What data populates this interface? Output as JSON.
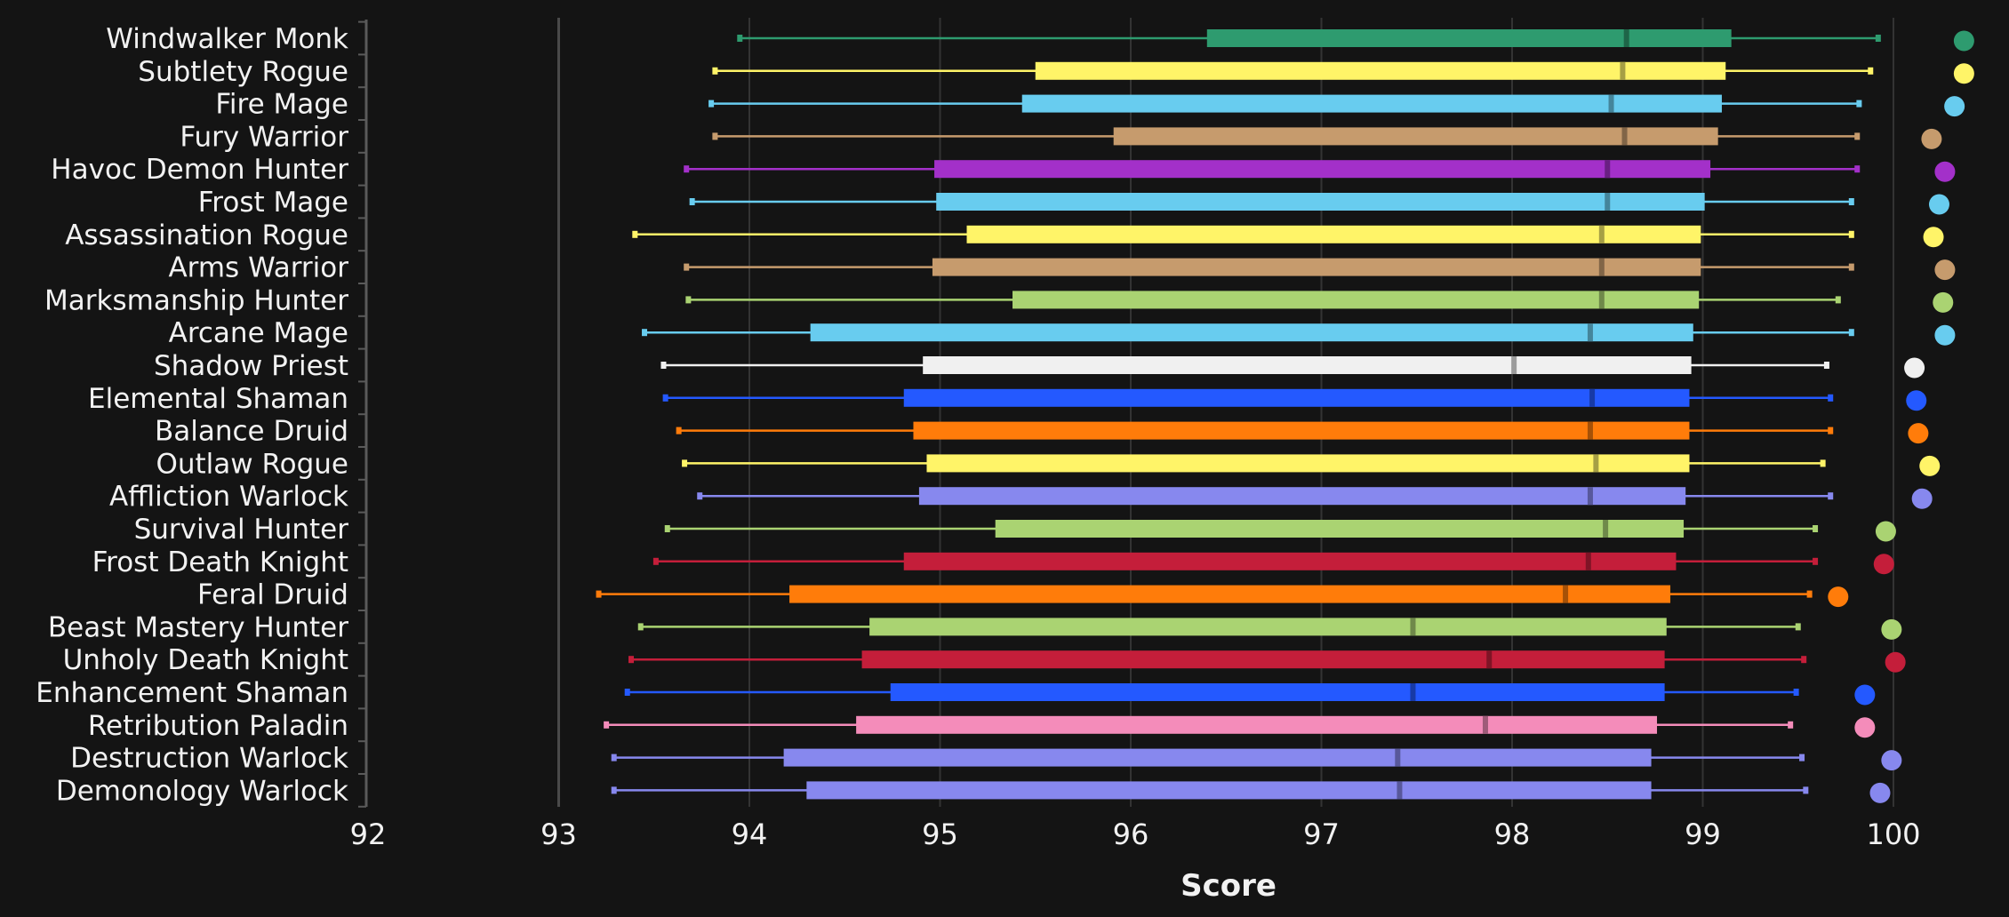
{
  "chart_data": {
    "type": "boxplot",
    "xlabel": "Score",
    "ylabel": "",
    "xlim": [
      92,
      100
    ],
    "xticks": [
      "92",
      "93",
      "94",
      "95",
      "96",
      "97",
      "98",
      "99",
      "100"
    ],
    "grid": true,
    "legend": "none",
    "series": [
      {
        "name": "Windwalker Monk",
        "color": "#2e9b6f",
        "min": 93.95,
        "q1": 96.4,
        "median": 98.6,
        "q3": 99.15,
        "max": 99.92,
        "max_point": 100.37
      },
      {
        "name": "Subtlety Rogue",
        "color": "#fff468",
        "min": 93.82,
        "q1": 95.5,
        "median": 98.58,
        "q3": 99.12,
        "max": 99.88,
        "max_point": 100.37
      },
      {
        "name": "Fire Mage",
        "color": "#68ccef",
        "min": 93.8,
        "q1": 95.43,
        "median": 98.52,
        "q3": 99.1,
        "max": 99.82,
        "max_point": 100.32
      },
      {
        "name": "Fury Warrior",
        "color": "#c69b6d",
        "min": 93.82,
        "q1": 95.91,
        "median": 98.59,
        "q3": 99.08,
        "max": 99.81,
        "max_point": 100.2
      },
      {
        "name": "Havoc Demon Hunter",
        "color": "#a330c9",
        "min": 93.67,
        "q1": 94.97,
        "median": 98.5,
        "q3": 99.04,
        "max": 99.81,
        "max_point": 100.27
      },
      {
        "name": "Frost Mage",
        "color": "#68ccef",
        "min": 93.7,
        "q1": 94.98,
        "median": 98.5,
        "q3": 99.01,
        "max": 99.78,
        "max_point": 100.24
      },
      {
        "name": "Assassination Rogue",
        "color": "#fff468",
        "min": 93.4,
        "q1": 95.14,
        "median": 98.47,
        "q3": 98.99,
        "max": 99.78,
        "max_point": 100.21
      },
      {
        "name": "Arms Warrior",
        "color": "#c69b6d",
        "min": 93.67,
        "q1": 94.96,
        "median": 98.47,
        "q3": 98.99,
        "max": 99.78,
        "max_point": 100.27
      },
      {
        "name": "Marksmanship Hunter",
        "color": "#aad372",
        "min": 93.68,
        "q1": 95.38,
        "median": 98.47,
        "q3": 98.98,
        "max": 99.71,
        "max_point": 100.26
      },
      {
        "name": "Arcane Mage",
        "color": "#68ccef",
        "min": 93.45,
        "q1": 94.32,
        "median": 98.41,
        "q3": 98.95,
        "max": 99.78,
        "max_point": 100.27
      },
      {
        "name": "Shadow Priest",
        "color": "#f0f0f0",
        "min": 93.55,
        "q1": 94.91,
        "median": 98.01,
        "q3": 98.94,
        "max": 99.65,
        "max_point": 100.11
      },
      {
        "name": "Elemental Shaman",
        "color": "#2459ff",
        "min": 93.56,
        "q1": 94.81,
        "median": 98.42,
        "q3": 98.93,
        "max": 99.67,
        "max_point": 100.12
      },
      {
        "name": "Balance Druid",
        "color": "#ff7c0a",
        "min": 93.63,
        "q1": 94.86,
        "median": 98.41,
        "q3": 98.93,
        "max": 99.67,
        "max_point": 100.13
      },
      {
        "name": "Outlaw Rogue",
        "color": "#fff468",
        "min": 93.66,
        "q1": 94.93,
        "median": 98.44,
        "q3": 98.93,
        "max": 99.63,
        "max_point": 100.19
      },
      {
        "name": "Affliction Warlock",
        "color": "#8788ee",
        "min": 93.74,
        "q1": 94.89,
        "median": 98.41,
        "q3": 98.91,
        "max": 99.67,
        "max_point": 100.15
      },
      {
        "name": "Survival Hunter",
        "color": "#aad372",
        "min": 93.57,
        "q1": 95.29,
        "median": 98.49,
        "q3": 98.9,
        "max": 99.59,
        "max_point": 99.96
      },
      {
        "name": "Frost Death Knight",
        "color": "#c41e3a",
        "min": 93.51,
        "q1": 94.81,
        "median": 98.4,
        "q3": 98.86,
        "max": 99.59,
        "max_point": 99.95
      },
      {
        "name": "Feral Druid",
        "color": "#ff7c0a",
        "min": 93.21,
        "q1": 94.21,
        "median": 98.28,
        "q3": 98.83,
        "max": 99.56,
        "max_point": 99.71
      },
      {
        "name": "Beast Mastery Hunter",
        "color": "#aad372",
        "min": 93.43,
        "q1": 94.63,
        "median": 97.48,
        "q3": 98.81,
        "max": 99.5,
        "max_point": 99.99
      },
      {
        "name": "Unholy Death Knight",
        "color": "#c41e3a",
        "min": 93.38,
        "q1": 94.59,
        "median": 97.88,
        "q3": 98.8,
        "max": 99.53,
        "max_point": 100.01
      },
      {
        "name": "Enhancement Shaman",
        "color": "#2459ff",
        "min": 93.36,
        "q1": 94.74,
        "median": 97.48,
        "q3": 98.8,
        "max": 99.49,
        "max_point": 99.85
      },
      {
        "name": "Retribution Paladin",
        "color": "#f48cba",
        "min": 93.25,
        "q1": 94.56,
        "median": 97.86,
        "q3": 98.76,
        "max": 99.46,
        "max_point": 99.85
      },
      {
        "name": "Destruction Warlock",
        "color": "#8788ee",
        "min": 93.29,
        "q1": 94.18,
        "median": 97.4,
        "q3": 98.73,
        "max": 99.52,
        "max_point": 99.99
      },
      {
        "name": "Demonology Warlock",
        "color": "#8788ee",
        "min": 93.29,
        "q1": 94.3,
        "median": 97.41,
        "q3": 98.73,
        "max": 99.54,
        "max_point": 99.93
      }
    ]
  }
}
